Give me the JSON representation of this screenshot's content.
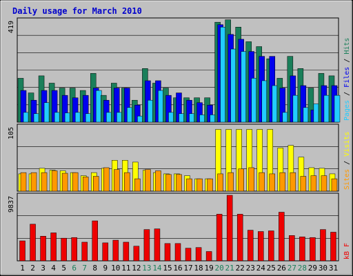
{
  "chart_data": [
    {
      "type": "bar",
      "title": "Daily usage for March 2010",
      "ylabel": "Pages / Files / Hits",
      "y_max_label": "419",
      "ylim": [
        0,
        419
      ],
      "categories": [
        "1",
        "2",
        "3",
        "4",
        "5",
        "6",
        "7",
        "8",
        "9",
        "10",
        "11",
        "12",
        "13",
        "14",
        "15",
        "16",
        "17",
        "18",
        "19",
        "20",
        "21",
        "22",
        "23",
        "24",
        "25",
        "26",
        "27",
        "28",
        "29",
        "30",
        "31"
      ],
      "weekend_days": [
        "6",
        "7",
        "13",
        "14",
        "20",
        "21",
        "27",
        "28"
      ],
      "series": [
        {
          "name": "Hits",
          "color": "#1a7f5a",
          "values": [
            180,
            120,
            190,
            160,
            140,
            140,
            130,
            200,
            110,
            160,
            140,
            90,
            220,
            160,
            140,
            100,
            100,
            100,
            100,
            410,
            420,
            390,
            330,
            310,
            260,
            180,
            270,
            220,
            140,
            200,
            190
          ]
        },
        {
          "name": "Files",
          "color": "#0000ee",
          "values": [
            130,
            90,
            130,
            130,
            110,
            100,
            110,
            140,
            90,
            140,
            140,
            70,
            170,
            170,
            110,
            120,
            90,
            80,
            70,
            400,
            360,
            340,
            290,
            270,
            270,
            140,
            190,
            150,
            50,
            150,
            150
          ]
        },
        {
          "name": "Pages",
          "color": "#22ccff",
          "values": [
            40,
            35,
            80,
            40,
            38,
            40,
            35,
            130,
            40,
            40,
            60,
            25,
            90,
            130,
            40,
            35,
            35,
            30,
            30,
            390,
            300,
            290,
            180,
            170,
            150,
            40,
            110,
            60,
            75,
            110,
            110
          ]
        }
      ]
    },
    {
      "type": "bar",
      "ylabel": "Visits / Sites",
      "y_max_label": "105",
      "ylim": [
        0,
        105
      ],
      "categories": [
        "1",
        "2",
        "3",
        "4",
        "5",
        "6",
        "7",
        "8",
        "9",
        "10",
        "11",
        "12",
        "13",
        "14",
        "15",
        "16",
        "17",
        "18",
        "19",
        "20",
        "21",
        "22",
        "23",
        "24",
        "25",
        "26",
        "27",
        "28",
        "29",
        "30",
        "31"
      ],
      "series": [
        {
          "name": "Visits",
          "color": "#ffff00",
          "values": [
            28,
            28,
            37,
            34,
            33,
            30,
            25,
            30,
            37,
            50,
            50,
            47,
            34,
            30,
            28,
            28,
            25,
            20,
            20,
            100,
            100,
            100,
            100,
            100,
            100,
            70,
            74,
            55,
            38,
            37,
            28
          ]
        },
        {
          "name": "Sites",
          "color": "#ff9900",
          "values": [
            30,
            30,
            30,
            33,
            29,
            30,
            23,
            24,
            38,
            35,
            30,
            20,
            35,
            33,
            27,
            27,
            20,
            20,
            20,
            28,
            30,
            36,
            38,
            30,
            28,
            30,
            30,
            24,
            25,
            25,
            20
          ]
        }
      ]
    },
    {
      "type": "bar",
      "ylabel": "kB F / kB In / kB Out",
      "y_max_label": "9837",
      "ylim": [
        0,
        9837
      ],
      "categories": [
        "1",
        "2",
        "3",
        "4",
        "5",
        "6",
        "7",
        "8",
        "9",
        "10",
        "11",
        "12",
        "13",
        "14",
        "15",
        "16",
        "17",
        "18",
        "19",
        "20",
        "21",
        "22",
        "23",
        "24",
        "25",
        "26",
        "27",
        "28",
        "29",
        "30",
        "31"
      ],
      "series": [
        {
          "name": "kB F",
          "color": "#ee0000",
          "values": [
            3000,
            5500,
            3700,
            4200,
            3400,
            3500,
            2800,
            6000,
            2700,
            3100,
            2800,
            2200,
            4700,
            4800,
            2600,
            2600,
            1900,
            2000,
            1400,
            7000,
            9837,
            7000,
            4600,
            4400,
            4500,
            7300,
            3800,
            3600,
            3500,
            4700,
            4300
          ]
        }
      ]
    }
  ]
}
